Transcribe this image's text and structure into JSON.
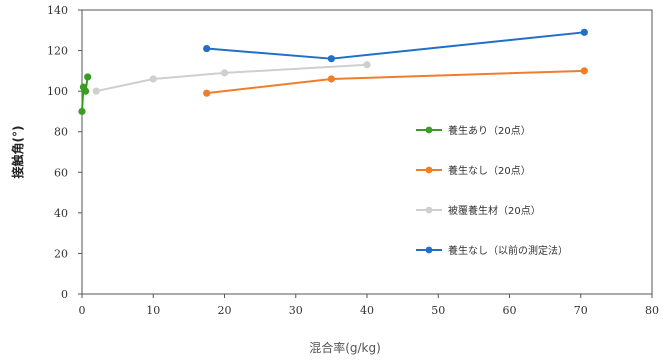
{
  "chart_data": {
    "type": "line",
    "xlabel": "混合率(g/kg)",
    "ylabel": "接触角(°)",
    "xlim": [
      0,
      80
    ],
    "ylim": [
      0,
      140
    ],
    "xticks": [
      0,
      10,
      20,
      30,
      40,
      50,
      60,
      70,
      80
    ],
    "yticks": [
      0,
      20,
      40,
      60,
      80,
      100,
      120,
      140
    ],
    "grid": false,
    "legend_position": "right",
    "series": [
      {
        "name": "養生あり（20点）",
        "color": "#3a9d23",
        "x": [
          0,
          0.2,
          0.5,
          0.8
        ],
        "y": [
          90,
          102,
          100,
          107
        ]
      },
      {
        "name": "養生なし（20点）",
        "color": "#f07d2a",
        "x": [
          17.5,
          35,
          70.5
        ],
        "y": [
          99,
          106,
          110
        ]
      },
      {
        "name": "被覆養生材（20点）",
        "color": "#cfcfcf",
        "x": [
          2,
          10,
          20,
          40
        ],
        "y": [
          100,
          106,
          109,
          113
        ]
      },
      {
        "name": "養生なし（以前の測定法）",
        "color": "#1f6fc8",
        "x": [
          17.5,
          35,
          70.5
        ],
        "y": [
          121,
          116,
          129
        ]
      }
    ]
  }
}
